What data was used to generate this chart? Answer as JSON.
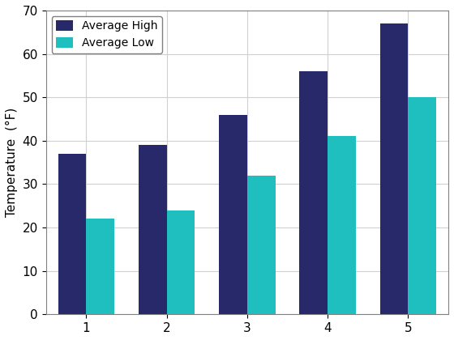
{
  "categories": [
    1,
    2,
    3,
    4,
    5
  ],
  "avg_high": [
    37,
    39,
    46,
    56,
    67
  ],
  "avg_low": [
    22,
    24,
    32,
    41,
    50
  ],
  "high_color": "#27296b",
  "low_color": "#1fbfbf",
  "ylabel": "Temperature  (°F)",
  "ylim": [
    0,
    70
  ],
  "yticks": [
    0,
    10,
    20,
    30,
    40,
    50,
    60,
    70
  ],
  "xticks": [
    1,
    2,
    3,
    4,
    5
  ],
  "legend_labels": [
    "Average High",
    "Average Low"
  ],
  "bar_width": 0.35,
  "background_color": "#ffffff",
  "grid_color": "#d0d0d0",
  "xlim": [
    0.5,
    5.5
  ]
}
